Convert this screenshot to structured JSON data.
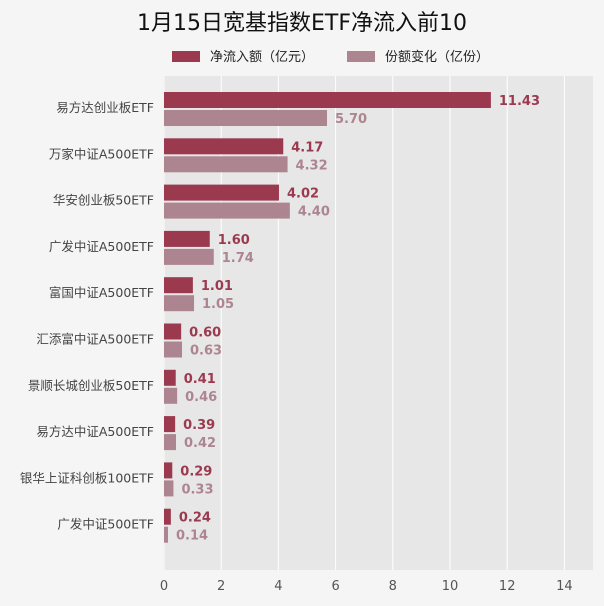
{
  "chart_data": {
    "type": "bar",
    "orientation": "horizontal",
    "title": "1月15日宽基指数ETF净流入前10",
    "categories": [
      "易方达创业板ETF",
      "万家中证A500ETF",
      "华安创业板50ETF",
      "广发中证A500ETF",
      "富国中证A500ETF",
      "汇添富中证A500ETF",
      "景顺长城创业板50ETF",
      "易方达中证A500ETF",
      "银华上证科创板100ETF",
      "广发中证500ETF"
    ],
    "series": [
      {
        "name": "净流入额（亿元）",
        "color": "#9b3a4f",
        "values": [
          11.43,
          4.17,
          4.02,
          1.6,
          1.01,
          0.6,
          0.41,
          0.39,
          0.29,
          0.24
        ]
      },
      {
        "name": "份额变化（亿份）",
        "color": "#ad8590",
        "values": [
          5.7,
          4.32,
          4.4,
          1.74,
          1.05,
          0.63,
          0.46,
          0.42,
          0.33,
          0.14
        ]
      }
    ],
    "xlim": [
      0,
      15
    ],
    "xticks": [
      0,
      2,
      4,
      6,
      8,
      10,
      12,
      14
    ],
    "grid": true,
    "legend_position": "top-center"
  }
}
